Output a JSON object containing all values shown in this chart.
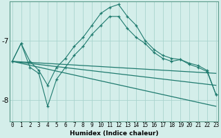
{
  "xlabel": "Humidex (Indice chaleur)",
  "bg_color": "#d4eeea",
  "grid_color": "#aad4ce",
  "line_color": "#1e7a6e",
  "x_ticks": [
    0,
    1,
    2,
    3,
    4,
    5,
    6,
    7,
    8,
    9,
    10,
    11,
    12,
    13,
    14,
    15,
    16,
    17,
    18,
    19,
    20,
    21,
    22,
    23
  ],
  "y_ticks": [
    -8,
    -7
  ],
  "ylim": [
    -8.35,
    -6.35
  ],
  "xlim": [
    -0.3,
    23.3
  ],
  "series1_x": [
    0,
    1,
    2,
    3,
    4,
    5,
    6,
    7,
    8,
    9,
    10,
    11,
    12,
    13,
    14,
    15,
    16,
    17,
    18,
    19,
    20,
    21,
    22,
    23
  ],
  "series1_y": [
    -7.35,
    -7.05,
    -7.35,
    -7.5,
    -7.75,
    -7.45,
    -7.3,
    -7.1,
    -6.95,
    -6.75,
    -6.55,
    -6.45,
    -6.4,
    -6.6,
    -6.75,
    -7.0,
    -7.15,
    -7.25,
    -7.3,
    -7.32,
    -7.38,
    -7.42,
    -7.5,
    -7.9
  ],
  "series2_x": [
    0,
    1,
    2,
    3,
    4,
    5,
    6,
    7,
    8,
    9,
    10,
    11,
    12,
    13,
    14,
    15,
    16,
    17,
    18,
    19,
    20,
    21,
    22,
    23
  ],
  "series2_y": [
    -7.35,
    -7.05,
    -7.45,
    -7.55,
    -8.1,
    -7.65,
    -7.45,
    -7.25,
    -7.1,
    -6.9,
    -6.75,
    -6.6,
    -6.6,
    -6.8,
    -6.95,
    -7.05,
    -7.2,
    -7.3,
    -7.35,
    -7.32,
    -7.4,
    -7.45,
    -7.52,
    -7.9
  ],
  "series3_x": [
    0,
    23
  ],
  "series3_y": [
    -7.35,
    -7.75
  ],
  "series4_x": [
    0,
    23
  ],
  "series4_y": [
    -7.35,
    -8.1
  ],
  "series5_x": [
    0,
    23
  ],
  "series5_y": [
    -7.35,
    -7.55
  ]
}
